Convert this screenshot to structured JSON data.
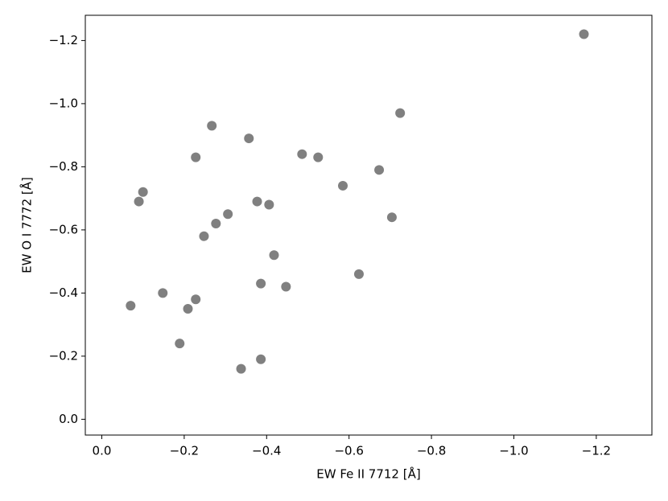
{
  "chart_data": {
    "type": "scatter",
    "x_label": "EW Fe II 7712 [Å]",
    "y_label": "EW O I 7772 [Å]",
    "color": "#808080",
    "x": [
      -1.17,
      -0.724,
      -0.267,
      -0.357,
      -0.228,
      -0.486,
      -0.525,
      -0.673,
      -0.585,
      -0.1,
      -0.09,
      -0.377,
      -0.406,
      -0.306,
      -0.277,
      -0.248,
      -0.704,
      -0.418,
      -0.624,
      -0.386,
      -0.447,
      -0.148,
      -0.07,
      -0.228,
      -0.209,
      -0.189,
      -0.386,
      -0.338
    ],
    "y": [
      -1.22,
      -0.97,
      -0.93,
      -0.89,
      -0.83,
      -0.84,
      -0.83,
      -0.79,
      -0.74,
      -0.72,
      -0.69,
      -0.69,
      -0.68,
      -0.65,
      -0.62,
      -0.58,
      -0.64,
      -0.52,
      -0.46,
      -0.43,
      -0.42,
      -0.4,
      -0.36,
      -0.38,
      -0.35,
      -0.24,
      -0.19,
      -0.16
    ],
    "xlim": [
      0.04,
      -1.335
    ],
    "ylim": [
      0.05,
      -1.28
    ],
    "xticks": [
      {
        "value": 0,
        "label": "0.0"
      },
      {
        "value": -0.2,
        "label": "−0.2"
      },
      {
        "value": -0.4,
        "label": "−0.4"
      },
      {
        "value": -0.6,
        "label": "−0.6"
      },
      {
        "value": -0.8,
        "label": "−0.8"
      },
      {
        "value": -1.0,
        "label": "−1.0"
      },
      {
        "value": -1.2,
        "label": "−1.2"
      }
    ],
    "yticks": [
      {
        "value": 0,
        "label": "0.0"
      },
      {
        "value": -0.2,
        "label": "−0.2"
      },
      {
        "value": -0.4,
        "label": "−0.4"
      },
      {
        "value": -0.6,
        "label": "−0.6"
      },
      {
        "value": -0.8,
        "label": "−0.8"
      },
      {
        "value": -1.0,
        "label": "−1.0"
      },
      {
        "value": -1.2,
        "label": "−1.2"
      }
    ]
  }
}
